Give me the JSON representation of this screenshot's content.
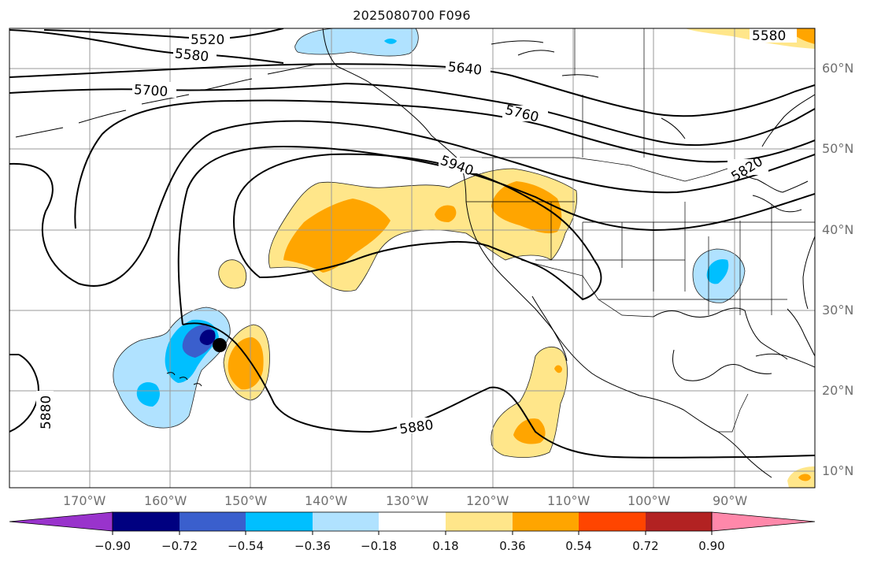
{
  "title": "2025080700 F096",
  "map": {
    "contours": [
      {
        "value": "5520"
      },
      {
        "value": "5580"
      },
      {
        "value": "5640"
      },
      {
        "value": "5700"
      },
      {
        "value": "5760"
      },
      {
        "value": "5820"
      },
      {
        "value": "5880"
      },
      {
        "value": "5940"
      }
    ],
    "marker": "point-marker"
  },
  "axes": {
    "lon_ticks": [
      "170°W",
      "160°W",
      "150°W",
      "140°W",
      "130°W",
      "120°W",
      "110°W",
      "100°W",
      "90°W"
    ],
    "lat_ticks": [
      "60°N",
      "50°N",
      "40°N",
      "30°N",
      "20°N",
      "10°N"
    ]
  },
  "colorbar": {
    "ticks": [
      "−0.90",
      "−0.72",
      "−0.54",
      "−0.36",
      "−0.18",
      "0.18",
      "0.36",
      "0.54",
      "0.72",
      "0.90"
    ],
    "colors": [
      "#9933cc",
      "#000080",
      "#3a5fcd",
      "#00bfff",
      "#b0e2ff",
      "#ffffff",
      "#ffe68a",
      "#ffa500",
      "#ff4500",
      "#b22222",
      "#ff88aa"
    ]
  }
}
